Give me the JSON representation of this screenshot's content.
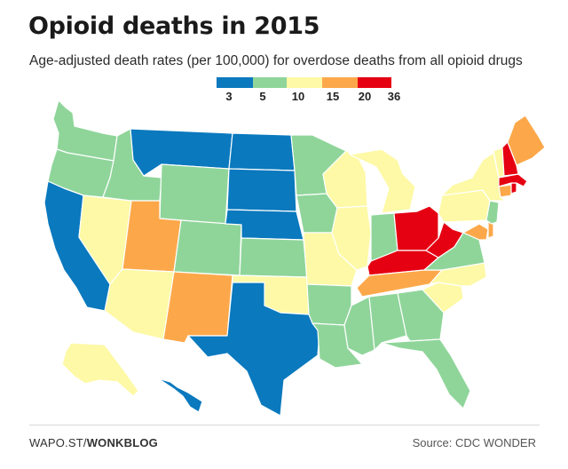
{
  "header": {
    "title": "Opioid deaths in 2015",
    "subtitle": "Age-adjusted death rates (per 100,000) for overdose deaths from all opioid drugs"
  },
  "legend": {
    "labels": [
      "3",
      "5",
      "10",
      "15",
      "20",
      "36"
    ],
    "colors": [
      "#0a79be",
      "#8fd59a",
      "#fdf9a6",
      "#fca84a",
      "#e50012"
    ]
  },
  "map_data": {
    "type": "choropleth",
    "bins": [
      {
        "range": [
          3,
          5
        ],
        "color": "#0a79be"
      },
      {
        "range": [
          5,
          10
        ],
        "color": "#8fd59a"
      },
      {
        "range": [
          10,
          15
        ],
        "color": "#fdf9a6"
      },
      {
        "range": [
          15,
          20
        ],
        "color": "#fca84a"
      },
      {
        "range": [
          20,
          36
        ],
        "color": "#e50012"
      }
    ],
    "states": {
      "WA": "5-10",
      "OR": "5-10",
      "CA": "3-5",
      "NV": "10-15",
      "ID": "5-10",
      "MT": "3-5",
      "WY": "5-10",
      "UT": "15-20",
      "AZ": "10-15",
      "CO": "5-10",
      "NM": "15-20",
      "ND": "3-5",
      "SD": "3-5",
      "NE": "3-5",
      "KS": "5-10",
      "OK": "10-15",
      "TX": "3-5",
      "MN": "5-10",
      "IA": "5-10",
      "MO": "10-15",
      "AR": "5-10",
      "LA": "5-10",
      "WI": "10-15",
      "IL": "10-15",
      "MI": "10-15",
      "IN": "5-10",
      "OH": "20-36",
      "KY": "20-36",
      "TN": "15-20",
      "MS": "5-10",
      "AL": "5-10",
      "GA": "5-10",
      "FL": "5-10",
      "SC": "10-15",
      "NC": "10-15",
      "VA": "5-10",
      "WV": "20-36",
      "MD": "15-20",
      "DE": "15-20",
      "PA": "10-15",
      "NY": "10-15",
      "NJ": "5-10",
      "CT": "15-20",
      "RI": "20-36",
      "MA": "20-36",
      "VT": "10-15",
      "NH": "20-36",
      "ME": "15-20",
      "AK": "10-15",
      "HI": "3-5"
    }
  },
  "footer": {
    "site_prefix": "WAPO.ST/",
    "site_suffix": "WONKBLOG",
    "source": "Source: CDC WONDER"
  }
}
